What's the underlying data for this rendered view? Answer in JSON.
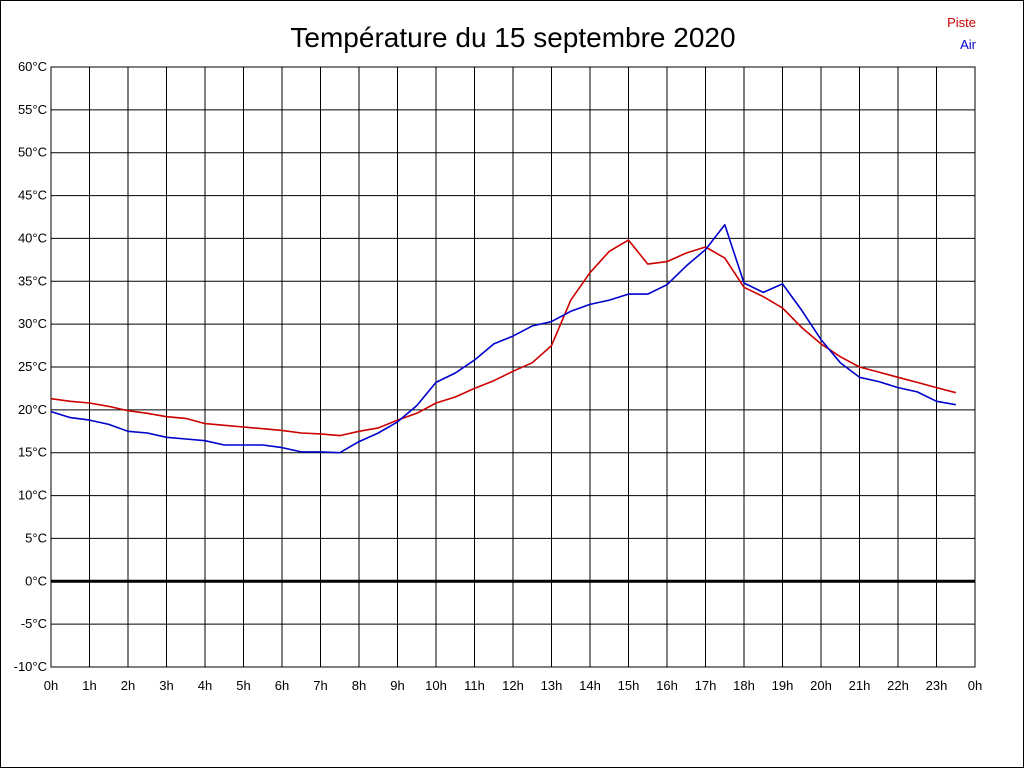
{
  "chart_data": {
    "type": "line",
    "title": "Température du 15 septembre 2020",
    "xlabel": "",
    "ylabel": "",
    "ylim": [
      -10,
      60
    ],
    "ytick_step": 5,
    "ytick_labels": [
      "-10°C",
      "-5°C",
      "0°C",
      "5°C",
      "10°C",
      "15°C",
      "20°C",
      "25°C",
      "30°C",
      "35°C",
      "40°C",
      "45°C",
      "50°C",
      "55°C",
      "60°C"
    ],
    "x_categories": [
      "0h",
      "1h",
      "2h",
      "3h",
      "4h",
      "5h",
      "6h",
      "7h",
      "8h",
      "9h",
      "10h",
      "11h",
      "12h",
      "13h",
      "14h",
      "15h",
      "16h",
      "17h",
      "18h",
      "19h",
      "20h",
      "21h",
      "22h",
      "23h",
      "0h"
    ],
    "xlim": [
      0,
      24
    ],
    "grid": true,
    "zero_line": true,
    "legend_position": "top-right",
    "series": [
      {
        "name": "Piste",
        "color": "#cc0000",
        "points": [
          [
            0,
            21.3
          ],
          [
            0.5,
            21.0
          ],
          [
            1,
            20.8
          ],
          [
            1.5,
            20.4
          ],
          [
            2,
            19.9
          ],
          [
            2.5,
            19.6
          ],
          [
            3,
            19.2
          ],
          [
            3.5,
            19.0
          ],
          [
            4,
            18.4
          ],
          [
            4.5,
            18.2
          ],
          [
            5,
            18.0
          ],
          [
            5.5,
            17.8
          ],
          [
            6,
            17.6
          ],
          [
            6.5,
            17.3
          ],
          [
            7,
            17.2
          ],
          [
            7.5,
            17.0
          ],
          [
            8,
            17.5
          ],
          [
            8.5,
            17.9
          ],
          [
            9,
            18.8
          ],
          [
            9.5,
            19.6
          ],
          [
            10,
            20.8
          ],
          [
            10.5,
            21.5
          ],
          [
            11,
            22.5
          ],
          [
            11.5,
            23.4
          ],
          [
            12,
            24.5
          ],
          [
            12.5,
            25.5
          ],
          [
            13,
            27.5
          ],
          [
            13.5,
            32.8
          ],
          [
            14,
            36.0
          ],
          [
            14.5,
            38.5
          ],
          [
            15,
            39.8
          ],
          [
            15.5,
            37.0
          ],
          [
            16,
            37.3
          ],
          [
            16.5,
            38.3
          ],
          [
            17,
            39.0
          ],
          [
            17.5,
            37.7
          ],
          [
            18,
            34.3
          ],
          [
            18.5,
            33.2
          ],
          [
            19,
            31.9
          ],
          [
            19.5,
            29.6
          ],
          [
            20,
            27.7
          ],
          [
            20.5,
            26.2
          ],
          [
            21,
            25.0
          ],
          [
            21.5,
            24.4
          ],
          [
            22,
            23.8
          ],
          [
            22.5,
            23.2
          ],
          [
            23,
            22.6
          ],
          [
            23.5,
            22.0
          ]
        ]
      },
      {
        "name": "Air",
        "color": "#0000cc",
        "points": [
          [
            0,
            19.8
          ],
          [
            0.5,
            19.1
          ],
          [
            1,
            18.8
          ],
          [
            1.5,
            18.3
          ],
          [
            2,
            17.5
          ],
          [
            2.5,
            17.3
          ],
          [
            3,
            16.8
          ],
          [
            3.5,
            16.6
          ],
          [
            4,
            16.4
          ],
          [
            4.5,
            15.9
          ],
          [
            5,
            15.9
          ],
          [
            5.5,
            15.9
          ],
          [
            6,
            15.6
          ],
          [
            6.5,
            15.1
          ],
          [
            7,
            15.1
          ],
          [
            7.5,
            15.0
          ],
          [
            8,
            16.3
          ],
          [
            8.5,
            17.3
          ],
          [
            9,
            18.6
          ],
          [
            9.5,
            20.5
          ],
          [
            10,
            23.2
          ],
          [
            10.5,
            24.3
          ],
          [
            11,
            25.8
          ],
          [
            11.5,
            27.7
          ],
          [
            12,
            28.6
          ],
          [
            12.5,
            29.8
          ],
          [
            13,
            30.3
          ],
          [
            13.5,
            31.5
          ],
          [
            14,
            32.3
          ],
          [
            14.5,
            32.8
          ],
          [
            15,
            33.5
          ],
          [
            15.5,
            33.5
          ],
          [
            16,
            34.6
          ],
          [
            16.5,
            36.8
          ],
          [
            17,
            38.7
          ],
          [
            17.5,
            41.6
          ],
          [
            18,
            34.8
          ],
          [
            18.5,
            33.7
          ],
          [
            19,
            34.7
          ],
          [
            19.5,
            31.6
          ],
          [
            20,
            28.2
          ],
          [
            20.5,
            25.5
          ],
          [
            21,
            23.8
          ],
          [
            21.5,
            23.3
          ],
          [
            22,
            22.6
          ],
          [
            22.5,
            22.1
          ],
          [
            23,
            21.0
          ],
          [
            23.5,
            20.6
          ]
        ]
      }
    ]
  }
}
